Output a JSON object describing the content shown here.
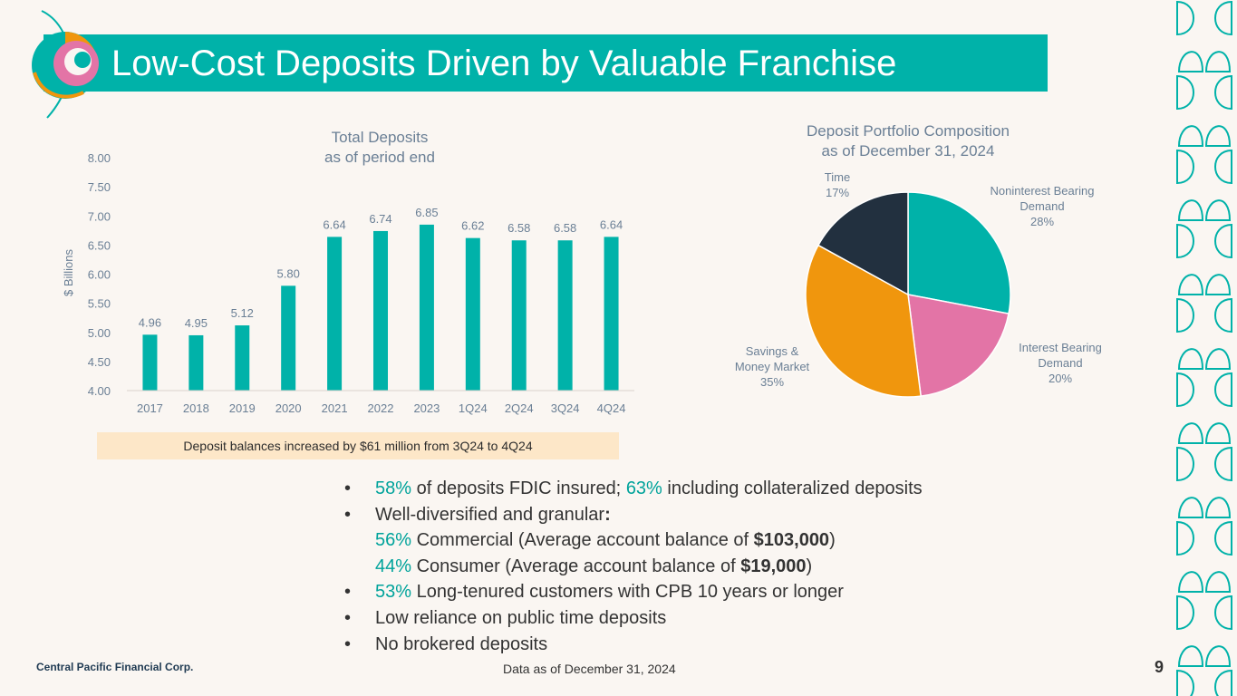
{
  "title": "Low-Cost Deposits Driven by Valuable Franchise",
  "colors": {
    "teal": "#00b2a9",
    "pink": "#e374a6",
    "orange": "#f0960d",
    "navy": "#22303f",
    "axis_text": "#6a7f95"
  },
  "chart_data": [
    {
      "type": "bar",
      "title": "Total Deposits",
      "subtitle": "as of period end",
      "ylabel": "$ Billions",
      "xlabel": "",
      "ylim": [
        4.0,
        8.0
      ],
      "yticks": [
        "4.00",
        "4.50",
        "5.00",
        "5.50",
        "6.00",
        "6.50",
        "7.00",
        "7.50",
        "8.00"
      ],
      "categories": [
        "2017",
        "2018",
        "2019",
        "2020",
        "2021",
        "2022",
        "2023",
        "1Q24",
        "2Q24",
        "3Q24",
        "4Q24"
      ],
      "values": [
        4.96,
        4.95,
        5.12,
        5.8,
        6.64,
        6.74,
        6.85,
        6.62,
        6.58,
        6.58,
        6.64
      ],
      "value_labels": [
        "4.96",
        "4.95",
        "5.12",
        "5.80",
        "6.64",
        "6.74",
        "6.85",
        "6.62",
        "6.58",
        "6.58",
        "6.64"
      ],
      "color": "#00b2a9",
      "grid": false
    },
    {
      "type": "pie",
      "title": "Deposit Portfolio Composition",
      "subtitle": "as of December 31, 2024",
      "slices": [
        {
          "label_lines": [
            "Noninterest Bearing",
            "Demand"
          ],
          "value": 28,
          "pct": "28%",
          "color": "#00b2a9"
        },
        {
          "label_lines": [
            "Interest Bearing",
            "Demand"
          ],
          "value": 20,
          "pct": "20%",
          "color": "#e374a6"
        },
        {
          "label_lines": [
            "Savings &",
            "Money Market"
          ],
          "value": 35,
          "pct": "35%",
          "color": "#f0960d"
        },
        {
          "label_lines": [
            "Time"
          ],
          "value": 17,
          "pct": "17%",
          "color": "#22303f"
        }
      ]
    }
  ],
  "callout": "Deposit balances increased by $61 million from 3Q24 to 4Q24",
  "bullets": {
    "b1": {
      "hl1": "58%",
      "t1": " of deposits FDIC insured; ",
      "hl2": "63%",
      "t2": " including collateralized deposits"
    },
    "b2": {
      "t1": "Well-diversified and granular",
      "t2": ":"
    },
    "b2a": {
      "hl1": "56%",
      "t1": " Commercial (Average account balance of ",
      "b1": "$103,000",
      "t2": ")"
    },
    "b2b": {
      "hl1": "44%",
      "t1": " Consumer (Average account balance of ",
      "b1": "$19,000",
      "t2": ")"
    },
    "b3": {
      "hl1": "53%",
      "t1": " Long-tenured customers with CPB 10 years or longer"
    },
    "b4": "Low reliance on public time deposits",
    "b5": "No brokered deposits",
    "marker": "•"
  },
  "footer": {
    "company": "Central Pacific Financial Corp.",
    "note": "Data as of December 31, 2024",
    "page": "9"
  }
}
